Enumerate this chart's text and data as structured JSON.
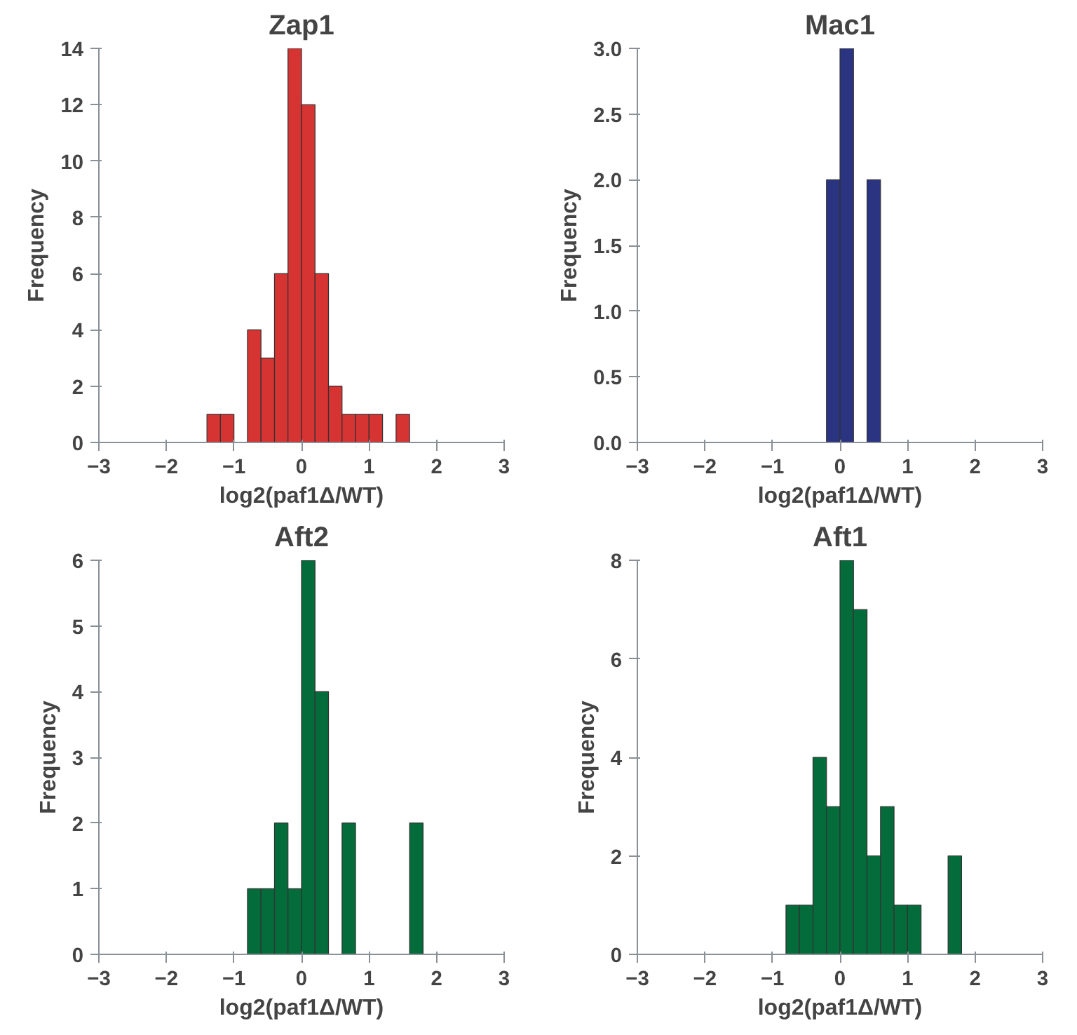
{
  "chart_data": [
    {
      "type": "histogram",
      "title": "Zap1",
      "xlabel": "log2(paf1Δ/WT)",
      "ylabel": "Frequency",
      "color": "#d63333",
      "bins": [
        -1.4,
        -1.2,
        -1.0,
        -0.8,
        -0.6,
        -0.4,
        -0.2,
        0.0,
        0.2,
        0.4,
        0.6,
        0.8,
        1.0,
        1.2,
        1.4,
        1.6
      ],
      "values": [
        1,
        1,
        0,
        4,
        3,
        6,
        14,
        12,
        6,
        2,
        1,
        1,
        1,
        0,
        1
      ],
      "xlim": [
        -3,
        3
      ],
      "xticks": [
        -3,
        -2,
        -1,
        0,
        1,
        2,
        3
      ],
      "ylim": [
        0,
        14
      ],
      "yticks": [
        0,
        2,
        4,
        6,
        8,
        10,
        12,
        14
      ],
      "grid": false
    },
    {
      "type": "histogram",
      "title": "Mac1",
      "xlabel": "log2(paf1Δ/WT)",
      "ylabel": "Frequency",
      "color": "#2b3481",
      "bins": [
        -0.2,
        0.0,
        0.2,
        0.4,
        0.6
      ],
      "values": [
        2,
        3,
        0,
        2
      ],
      "xlim": [
        -3,
        3
      ],
      "xticks": [
        -3,
        -2,
        -1,
        0,
        1,
        2,
        3
      ],
      "ylim": [
        0,
        3
      ],
      "yticks": [
        {
          "value": 0,
          "label": "0.0"
        },
        0.5,
        {
          "value": 1,
          "label": "1.0"
        },
        1.5,
        {
          "value": 2,
          "label": "2.0"
        },
        2.5,
        {
          "value": 3,
          "label": "3.0"
        }
      ],
      "grid": false
    },
    {
      "type": "histogram",
      "title": "Aft2",
      "xlabel": "log2(paf1Δ/WT)",
      "ylabel": "Frequency",
      "color": "#046b3b",
      "bins": [
        -0.8,
        -0.6,
        -0.4,
        -0.2,
        0.0,
        0.2,
        0.4,
        0.6,
        0.8,
        1.0,
        1.2,
        1.4,
        1.6,
        1.8
      ],
      "values": [
        1,
        1,
        2,
        1,
        6,
        4,
        0,
        2,
        0,
        0,
        0,
        0,
        2
      ],
      "xlim": [
        -3,
        3
      ],
      "xticks": [
        -3,
        -2,
        -1,
        0,
        1,
        2,
        3
      ],
      "ylim": [
        0,
        6
      ],
      "yticks": [
        0,
        1,
        2,
        3,
        4,
        5,
        6
      ],
      "grid": false
    },
    {
      "type": "histogram",
      "title": "Aft1",
      "xlabel": "log2(paf1Δ/WT)",
      "ylabel": "Frequency",
      "color": "#046b3b",
      "bins": [
        -0.8,
        -0.6,
        -0.4,
        -0.2,
        0.0,
        0.2,
        0.4,
        0.6,
        0.8,
        1.0,
        1.2,
        1.4,
        1.6,
        1.8
      ],
      "values": [
        1,
        1,
        4,
        3,
        8,
        7,
        2,
        3,
        1,
        1,
        0,
        0,
        2
      ],
      "xlim": [
        -3,
        3
      ],
      "xticks": [
        -3,
        -2,
        -1,
        0,
        1,
        2,
        3
      ],
      "ylim": [
        0,
        8
      ],
      "yticks": [
        0,
        2,
        4,
        6,
        8
      ],
      "grid": false
    }
  ]
}
